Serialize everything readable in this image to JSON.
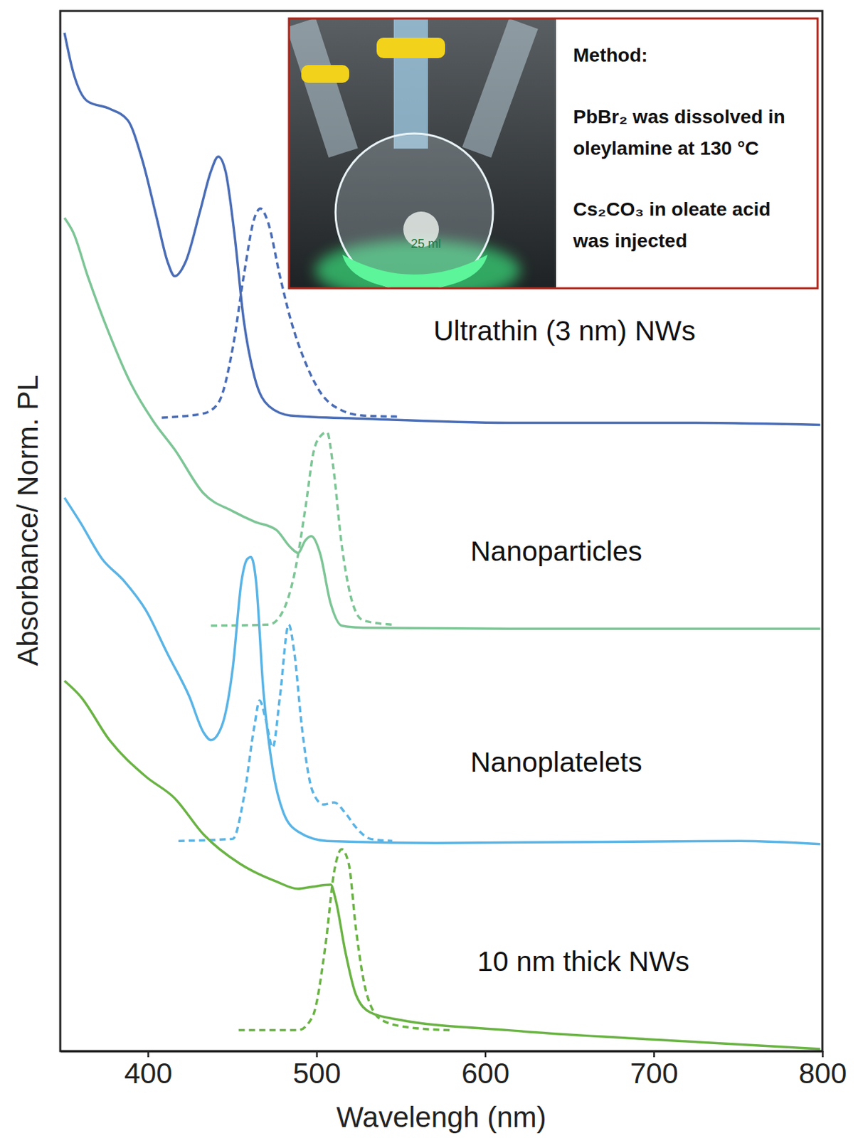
{
  "chart_data": {
    "type": "line",
    "x_label": "Wavelengh (nm)",
    "y_label": "Absorbance/ Norm. PL",
    "xlim": [
      348,
      800
    ],
    "xticks": [
      400,
      500,
      600,
      700,
      800
    ],
    "ylim": [
      0,
      100
    ],
    "tick_labels": "x",
    "grid": false,
    "annotations": [
      {
        "text": "Ultrathin (3 nm) NWs"
      },
      {
        "text": "Nanoparticles"
      },
      {
        "text": "Nanoplatelets"
      },
      {
        "text": "10 nm thick NWs"
      }
    ],
    "inset": {
      "photo_text": "25 ml",
      "title": "Method:",
      "steps": [
        "PbBr₂ was dissolved in oleylamine at 130 °C",
        "Cs₂CO₃ in oleate acid was injected"
      ]
    },
    "series": [
      {
        "color": "#4a6db5",
        "line_style": "solid",
        "x": [
          350.5,
          355.7,
          364.3,
          377.2,
          388,
          396.6,
          405.2,
          411.6,
          415.9,
          422.4,
          431,
          437.4,
          441.7,
          446,
          451.2,
          456.8,
          463.2,
          471.8,
          484.7,
          527.7,
          613.8,
          717,
          798.7
        ],
        "values": [
          97.9,
          94.1,
          91.3,
          90.6,
          89.5,
          85.7,
          80.1,
          75.9,
          74.5,
          75.9,
          80.8,
          84.6,
          86.0,
          84.6,
          78.7,
          70.3,
          64.8,
          62.0,
          61.1,
          60.8,
          60.4,
          60.4,
          60.2
        ]
      },
      {
        "color": "#4a6db5",
        "line_style": "dashed",
        "x": [
          408.2,
          433,
          441.7,
          450.3,
          456.8,
          463.2,
          466.7,
          471,
          478.3,
          484.7,
          493.4,
          502,
          514.9,
          527.7,
          548.4
        ],
        "values": [
          60.9,
          61.3,
          62.3,
          67.6,
          74.5,
          80.1,
          81.0,
          79.8,
          74.5,
          70.3,
          66.2,
          63.4,
          61.6,
          61.1,
          61.0
        ]
      },
      {
        "color": "#7dc596",
        "line_style": "solid",
        "x": [
          350.5,
          355.7,
          364.3,
          377.2,
          390.1,
          403,
          416,
          433.1,
          450.3,
          463.2,
          476.1,
          484.7,
          489,
          493.4,
          496.8,
          502,
          508.4,
          514.9,
          527.7,
          613.8,
          798.7
        ],
        "values": [
          80.1,
          78.7,
          74.5,
          68.9,
          64.1,
          60.6,
          57.8,
          53.6,
          51.9,
          50.9,
          50.1,
          48.4,
          47.9,
          49.1,
          49.5,
          47.9,
          43.0,
          40.9,
          40.7,
          40.6,
          40.6
        ]
      },
      {
        "color": "#7dc596",
        "line_style": "dashed",
        "x": [
          437.4,
          471.8,
          480.4,
          486.9,
          493.4,
          498.5,
          502.8,
          506.2,
          509.7,
          514.9,
          521.3,
          527.7,
          544.9
        ],
        "values": [
          40.9,
          41.0,
          42.4,
          45.9,
          52.2,
          57.8,
          59.2,
          59.5,
          56.4,
          48.7,
          43.1,
          41.4,
          41.0
        ]
      },
      {
        "color": "#5ab4e5",
        "line_style": "solid",
        "x": [
          350.5,
          360,
          372.9,
          385.8,
          398.7,
          411.6,
          424.5,
          433.1,
          437.4,
          443.9,
          450.3,
          455.5,
          458.9,
          461.1,
          464.1,
          468.4,
          474,
          480.4,
          489,
          506.2,
          570.8,
          751.4,
          798.7
        ],
        "values": [
          53.2,
          50.8,
          47.3,
          45.2,
          42.4,
          38.2,
          34.1,
          30.6,
          29.9,
          31.3,
          36.8,
          45.2,
          47.3,
          47.5,
          45.2,
          34.8,
          27.1,
          22.9,
          21.1,
          20.2,
          20.0,
          20.2,
          19.9
        ]
      },
      {
        "color": "#5ab4e5",
        "line_style": "dashed",
        "x": [
          418.1,
          450.3,
          456.8,
          463.2,
          466.2,
          469.7,
          474,
          478.3,
          483.5,
          486.9,
          491.2,
          497.6,
          504.1,
          510.5,
          517,
          523.4,
          532,
          544.9
        ],
        "values": [
          20.2,
          20.4,
          24.3,
          31.3,
          33.7,
          32.0,
          29.2,
          34.1,
          41.0,
          38.2,
          31.3,
          25.0,
          23.7,
          23.9,
          22.9,
          21.5,
          20.4,
          20.2
        ]
      },
      {
        "color": "#6ab344",
        "line_style": "solid",
        "x": [
          350.5,
          360,
          377.2,
          398.7,
          415.9,
          433.1,
          454.6,
          476.1,
          489,
          497.6,
          508.4,
          511.4,
          517,
          523.4,
          532,
          549.3,
          613.8,
          699.8,
          798.7
        ],
        "values": [
          35.6,
          34.1,
          29.9,
          26.4,
          24.3,
          20.8,
          18.0,
          16.3,
          15.6,
          15.8,
          16.0,
          14.5,
          9.6,
          5.4,
          3.7,
          3.0,
          2.0,
          1.1,
          0.2
        ]
      },
      {
        "color": "#6ab344",
        "line_style": "dashed",
        "x": [
          453.8,
          489,
          497.6,
          505.4,
          510.5,
          514.9,
          519.1,
          523.4,
          529.9,
          538.5,
          553.5,
          579.3
        ],
        "values": [
          2.0,
          2.0,
          3.3,
          10.3,
          17.3,
          19.4,
          18.0,
          11.7,
          5.4,
          3.0,
          2.3,
          2.0
        ]
      }
    ]
  }
}
